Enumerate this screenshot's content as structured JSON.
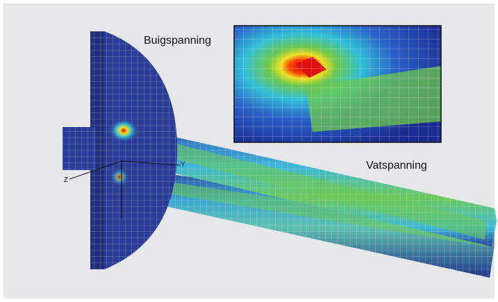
{
  "annotations": {
    "bending_stress": "Buigspanning",
    "hoop_stress": "Vatspanning"
  },
  "axis_labels": {
    "y": "Y",
    "z": "Z"
  }
}
